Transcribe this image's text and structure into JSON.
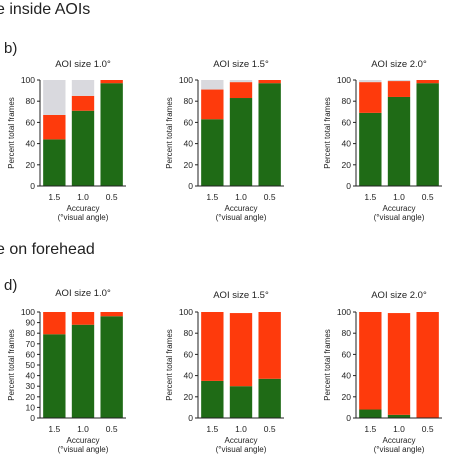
{
  "headings": {
    "top": "e inside AOIs",
    "bottom": "e on forehead"
  },
  "panel_labels": {
    "b": "b)",
    "d": "d)"
  },
  "colors": {
    "green": "#1f6b16",
    "red": "#fe3a0c",
    "grey": "#d9d9de",
    "axis": "#222222"
  },
  "chart_data": [
    {
      "type": "bar",
      "stacked": true,
      "panel": "b",
      "title": "AOI size 1.0°",
      "xlabel": "Accuracy",
      "xlabel2": "(°visual angle)",
      "ylabel": "Percent total frames",
      "ylim": [
        0,
        100
      ],
      "yticks": [
        0,
        20,
        40,
        60,
        80,
        100
      ],
      "categories": [
        "1.5",
        "1.0",
        "0.5"
      ],
      "series": [
        {
          "values": [
            44,
            71,
            97
          ],
          "color": "green"
        },
        {
          "values": [
            23,
            14,
            3
          ],
          "color": "red"
        },
        {
          "values": [
            33,
            15,
            0
          ],
          "color": "grey"
        }
      ]
    },
    {
      "type": "bar",
      "stacked": true,
      "panel": "b",
      "title": "AOI size 1.5°",
      "xlabel": "Accuracy",
      "xlabel2": "(°visual angle)",
      "ylabel": "Percent total frames",
      "ylim": [
        0,
        100
      ],
      "yticks": [
        0,
        20,
        40,
        60,
        80,
        100
      ],
      "categories": [
        "1.5",
        "1.0",
        "0.5"
      ],
      "series": [
        {
          "values": [
            63,
            83,
            97
          ],
          "color": "green"
        },
        {
          "values": [
            28,
            15,
            3
          ],
          "color": "red"
        },
        {
          "values": [
            9,
            2,
            0
          ],
          "color": "grey"
        }
      ]
    },
    {
      "type": "bar",
      "stacked": true,
      "panel": "b",
      "title": "AOI size 2.0°",
      "xlabel": "Accuracy",
      "xlabel2": "(°visual angle)",
      "ylabel": "Percent total frames",
      "ylim": [
        0,
        100
      ],
      "yticks": [
        0,
        20,
        40,
        60,
        80,
        100
      ],
      "categories": [
        "1.5",
        "1.0",
        "0.5"
      ],
      "series": [
        {
          "values": [
            69,
            84,
            97
          ],
          "color": "green"
        },
        {
          "values": [
            29,
            15,
            3
          ],
          "color": "red"
        },
        {
          "values": [
            2,
            1,
            0
          ],
          "color": "grey"
        }
      ]
    },
    {
      "type": "bar",
      "stacked": true,
      "panel": "d",
      "title": "AOI size 1.0°",
      "xlabel": "Accuracy",
      "xlabel2": "(°visual angle)",
      "ylabel": "Percent total frames",
      "ylim": [
        0,
        100
      ],
      "yticks": [
        0,
        10,
        20,
        30,
        40,
        50,
        60,
        70,
        80,
        90,
        100
      ],
      "categories": [
        "1.5",
        "1.0",
        "0.5"
      ],
      "series": [
        {
          "values": [
            79,
            88,
            96
          ],
          "color": "green"
        },
        {
          "values": [
            21,
            12,
            4
          ],
          "color": "red"
        }
      ]
    },
    {
      "type": "bar",
      "stacked": true,
      "panel": "d",
      "title": "AOI size 1.5°",
      "xlabel": "Accuracy",
      "xlabel2": "(°visual angle)",
      "ylabel": "Percent total frames",
      "ylim": [
        0,
        100
      ],
      "yticks": [
        0,
        20,
        40,
        60,
        80,
        100
      ],
      "categories": [
        "1.5",
        "1.0",
        "0.5"
      ],
      "series": [
        {
          "values": [
            35,
            30,
            37
          ],
          "color": "green"
        },
        {
          "values": [
            65,
            69,
            63
          ],
          "color": "red"
        }
      ]
    },
    {
      "type": "bar",
      "stacked": true,
      "panel": "d",
      "title": "AOI size 2.0°",
      "xlabel": "Accuracy",
      "xlabel2": "(°visual angle)",
      "ylabel": "Percent total frames",
      "ylim": [
        0,
        100
      ],
      "yticks": [
        0,
        20,
        40,
        60,
        80,
        100
      ],
      "categories": [
        "1.5",
        "1.0",
        "0.5"
      ],
      "series": [
        {
          "values": [
            8,
            3,
            0
          ],
          "color": "green"
        },
        {
          "values": [
            92,
            96,
            100
          ],
          "color": "red"
        }
      ]
    }
  ]
}
